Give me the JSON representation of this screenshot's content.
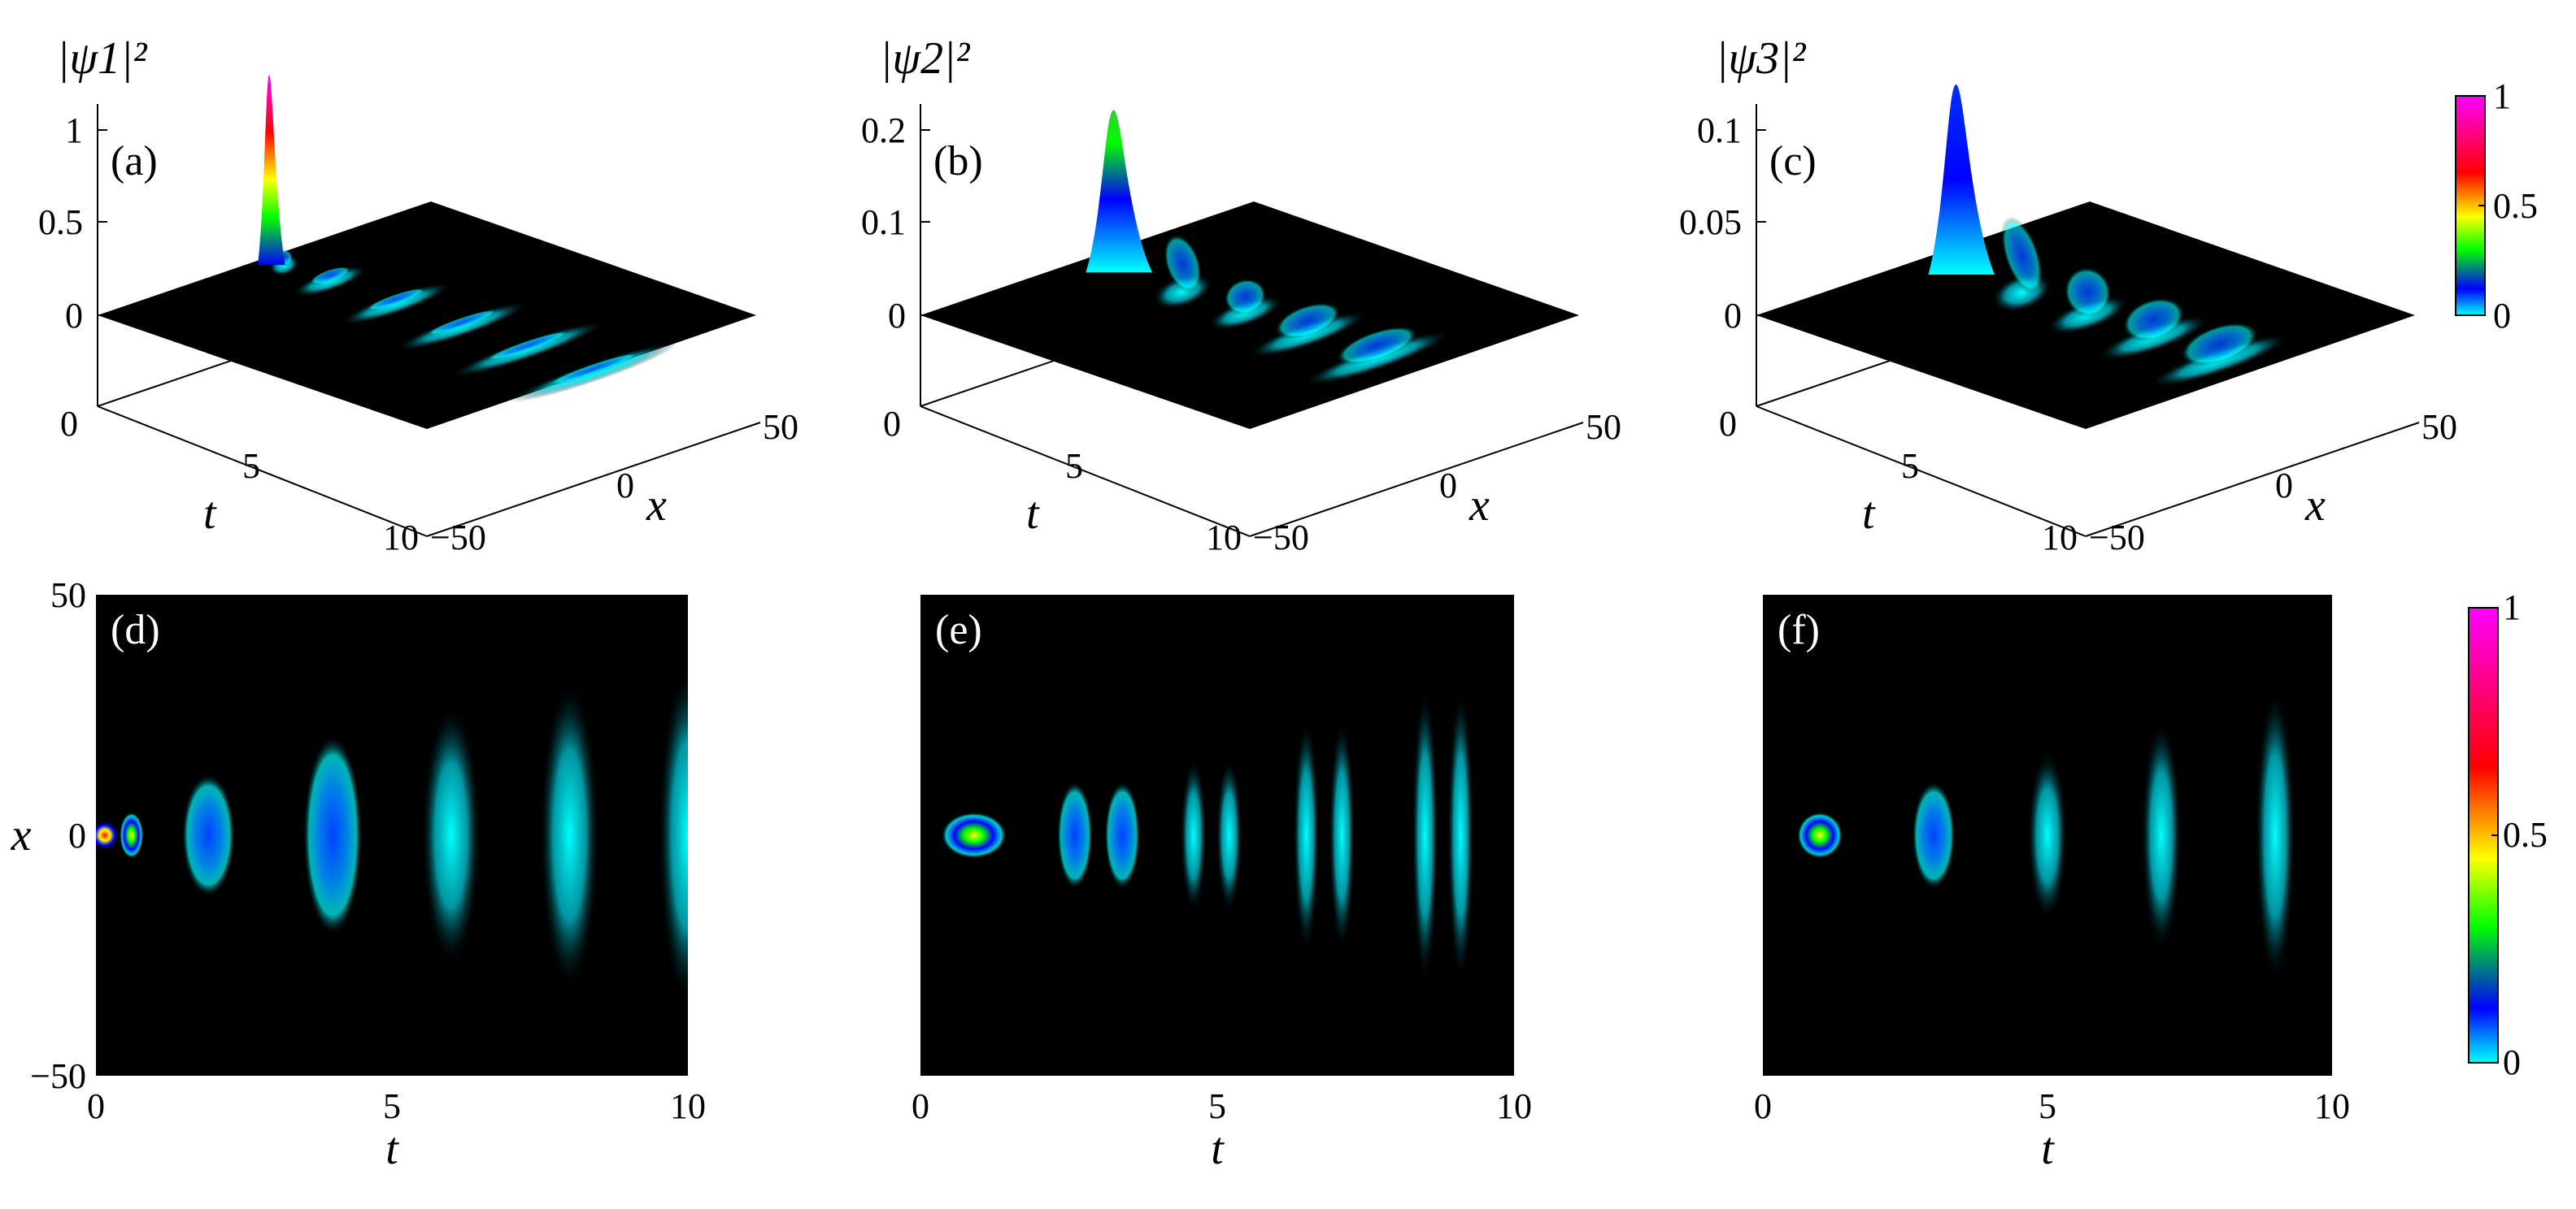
{
  "colormap": {
    "stops": [
      "#00ffff",
      "#0000ff",
      "#00ff00",
      "#ffff00",
      "#ff0000",
      "#ff00ff"
    ],
    "tick_labels": [
      "0",
      "0.5",
      "1"
    ],
    "tick_values": [
      0,
      0.5,
      1
    ]
  },
  "chart_data": [
    {
      "id": "a",
      "type": "heatmap",
      "view": "3d-surface",
      "panel_label": "(a)",
      "zlabel": "|ψ1|²",
      "xlabel": "t",
      "ylabel": "x",
      "xticks": [
        "0",
        "5",
        "10"
      ],
      "yticks": [
        "−50",
        "0",
        "50"
      ],
      "zticks": [
        "0",
        "0.5",
        "1"
      ],
      "zlim": [
        0,
        1
      ],
      "xlim": [
        0,
        10
      ],
      "ylim": [
        -50,
        50
      ],
      "peak": 1.0,
      "lobes": [
        {
          "t": 0.15,
          "amp": 1.0,
          "width": 3
        },
        {
          "t": 0.6,
          "amp": 0.08,
          "width": 4
        },
        {
          "t": 2.0,
          "amp": 0.06,
          "width": 10
        },
        {
          "t": 4.0,
          "amp": 0.05,
          "width": 15
        },
        {
          "t": 6.0,
          "amp": 0.045,
          "width": 18
        },
        {
          "t": 8.0,
          "amp": 0.04,
          "width": 21
        },
        {
          "t": 10.0,
          "amp": 0.035,
          "width": 23
        }
      ]
    },
    {
      "id": "b",
      "type": "heatmap",
      "view": "3d-surface",
      "panel_label": "(b)",
      "zlabel": "|ψ2|²",
      "xlabel": "t",
      "ylabel": "x",
      "xticks": [
        "0",
        "5",
        "10"
      ],
      "yticks": [
        "−50",
        "0",
        "50"
      ],
      "zticks": [
        "0",
        "0.1",
        "0.2"
      ],
      "zlim": [
        0,
        0.2
      ],
      "xlim": [
        0,
        10
      ],
      "ylim": [
        -50,
        50
      ],
      "peak": 0.2,
      "lobes": [
        {
          "t": 0.8,
          "amp": 0.17,
          "width": 4
        },
        {
          "t": 2.9,
          "amp": 0.06,
          "width": 8
        },
        {
          "t": 4.8,
          "amp": 0.035,
          "width": 10
        },
        {
          "t": 6.7,
          "amp": 0.03,
          "width": 16
        },
        {
          "t": 8.8,
          "amp": 0.028,
          "width": 20
        }
      ]
    },
    {
      "id": "c",
      "type": "heatmap",
      "view": "3d-surface",
      "panel_label": "(c)",
      "zlabel": "|ψ3|²",
      "xlabel": "t",
      "ylabel": "x",
      "xticks": [
        "0",
        "5",
        "10"
      ],
      "yticks": [
        "−50",
        "0",
        "50"
      ],
      "zticks": [
        "0",
        "0.05",
        "0.1"
      ],
      "zlim": [
        0,
        0.1
      ],
      "xlim": [
        0,
        10
      ],
      "ylim": [
        -50,
        50
      ],
      "peak": 0.1,
      "lobes": [
        {
          "t": 1.0,
          "amp": 0.1,
          "width": 4
        },
        {
          "t": 3.0,
          "amp": 0.04,
          "width": 8
        },
        {
          "t": 5.0,
          "amp": 0.025,
          "width": 11
        },
        {
          "t": 7.0,
          "amp": 0.02,
          "width": 15
        },
        {
          "t": 9.0,
          "amp": 0.018,
          "width": 19
        }
      ]
    },
    {
      "id": "d",
      "type": "heatmap",
      "view": "2d",
      "panel_label": "(d)",
      "xlabel": "t",
      "ylabel": "x",
      "xticks": [
        "0",
        "5",
        "10"
      ],
      "yticks": [
        "−50",
        "0",
        "50"
      ],
      "xlim": [
        0,
        10
      ],
      "ylim": [
        -50,
        50
      ],
      "lobes": [
        {
          "t": 0.15,
          "amp": 1.0,
          "width": 2,
          "tw": 0.25
        },
        {
          "t": 0.6,
          "amp": 0.25,
          "width": 3,
          "tw": 0.2
        },
        {
          "t": 1.9,
          "amp": 0.22,
          "width": 8,
          "tw": 0.45
        },
        {
          "t": 4.0,
          "amp": 0.14,
          "width": 13,
          "tw": 0.5
        },
        {
          "t": 6.0,
          "amp": 0.12,
          "width": 17,
          "tw": 0.5
        },
        {
          "t": 8.0,
          "amp": 0.1,
          "width": 20,
          "tw": 0.5
        },
        {
          "t": 10.0,
          "amp": 0.09,
          "width": 22,
          "tw": 0.5
        }
      ]
    },
    {
      "id": "e",
      "type": "heatmap",
      "view": "2d",
      "panel_label": "(e)",
      "xlabel": "t",
      "ylabel": "x",
      "xticks": [
        "0",
        "5",
        "10"
      ],
      "yticks": [],
      "xlim": [
        0,
        10
      ],
      "ylim": [
        -50,
        50
      ],
      "lobes": [
        {
          "t": 0.9,
          "amp": 0.3,
          "width": 3,
          "tw": 0.55
        },
        {
          "t": 2.6,
          "amp": 0.14,
          "width": 7,
          "tw": 0.3
        },
        {
          "t": 3.4,
          "amp": 0.14,
          "width": 7,
          "tw": 0.3
        },
        {
          "t": 4.6,
          "amp": 0.1,
          "width": 10,
          "tw": 0.22
        },
        {
          "t": 5.2,
          "amp": 0.1,
          "width": 10,
          "tw": 0.22
        },
        {
          "t": 6.5,
          "amp": 0.08,
          "width": 15,
          "tw": 0.22
        },
        {
          "t": 7.1,
          "amp": 0.08,
          "width": 15,
          "tw": 0.22
        },
        {
          "t": 8.5,
          "amp": 0.07,
          "width": 19,
          "tw": 0.22
        },
        {
          "t": 9.1,
          "amp": 0.07,
          "width": 19,
          "tw": 0.22
        }
      ]
    },
    {
      "id": "f",
      "type": "heatmap",
      "view": "2d",
      "panel_label": "(f)",
      "xlabel": "t",
      "ylabel": "x",
      "xticks": [
        "0",
        "5",
        "10"
      ],
      "yticks": [],
      "xlim": [
        0,
        10
      ],
      "ylim": [
        -50,
        50
      ],
      "lobes": [
        {
          "t": 1.0,
          "amp": 0.3,
          "width": 3,
          "tw": 0.4
        },
        {
          "t": 3.0,
          "amp": 0.15,
          "width": 7,
          "tw": 0.38
        },
        {
          "t": 5.0,
          "amp": 0.1,
          "width": 11,
          "tw": 0.35
        },
        {
          "t": 7.0,
          "amp": 0.08,
          "width": 15,
          "tw": 0.35
        },
        {
          "t": 9.0,
          "amp": 0.065,
          "width": 19,
          "tw": 0.35
        }
      ]
    }
  ]
}
